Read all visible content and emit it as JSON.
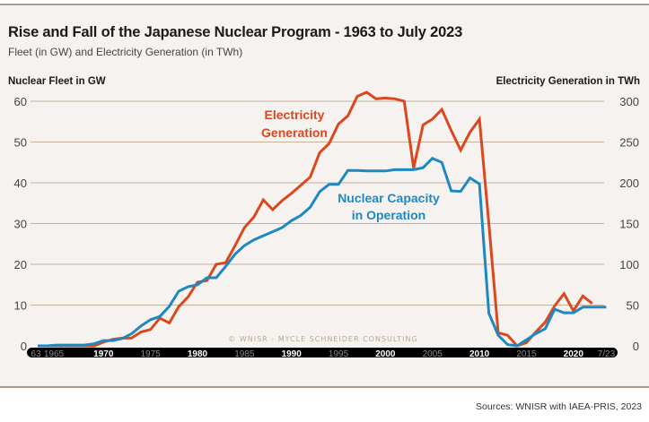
{
  "header": {
    "title": "Rise and Fall of the Japanese Nuclear Program - 1963 to July 2023",
    "subtitle": "Fleet (in GW) and Electricity Generation (in TWh)"
  },
  "footer": {
    "sources": "Sources: WNISR with IAEA-PRIS, 2023"
  },
  "colors": {
    "generation": "#d9481f",
    "capacity": "#1e88c0",
    "grid": "#c4b29a",
    "axis_band": "#000000"
  },
  "chart_data": {
    "type": "line",
    "title": "Rise and Fall of the Japanese Nuclear Program - 1963 to July 2023",
    "subtitle": "Fleet (in GW) and Electricity Generation (in TWh)",
    "ylabel_left": "Nuclear Fleet in GW",
    "ylabel_right": "Electricity Generation in TWh",
    "ylim_left": [
      0,
      60
    ],
    "ylim_right": [
      0,
      300
    ],
    "yticks_left": [
      "0",
      "10",
      "20",
      "30",
      "40",
      "50",
      "60"
    ],
    "yticks_right": [
      "0",
      "50",
      "100",
      "150",
      "200",
      "250",
      "300"
    ],
    "xlim": [
      1963,
      2023.5
    ],
    "xticks": [
      {
        "label": "63",
        "year": 1963,
        "bold": false
      },
      {
        "label": "1965",
        "year": 1965,
        "bold": false
      },
      {
        "label": "1970",
        "year": 1970,
        "bold": true
      },
      {
        "label": "1975",
        "year": 1975,
        "bold": false
      },
      {
        "label": "1980",
        "year": 1980,
        "bold": true
      },
      {
        "label": "1985",
        "year": 1985,
        "bold": false
      },
      {
        "label": "1990",
        "year": 1990,
        "bold": true
      },
      {
        "label": "1995",
        "year": 1995,
        "bold": false
      },
      {
        "label": "2000",
        "year": 2000,
        "bold": true
      },
      {
        "label": "2005",
        "year": 2005,
        "bold": false
      },
      {
        "label": "2010",
        "year": 2010,
        "bold": true
      },
      {
        "label": "2015",
        "year": 2015,
        "bold": false
      },
      {
        "label": "2020",
        "year": 2020,
        "bold": true
      },
      {
        "label": "7/23",
        "year": 2023.5,
        "bold": false
      }
    ],
    "grid": true,
    "watermark": "© WNISR - Mycle Schneider Consulting",
    "series": [
      {
        "name": "Nuclear Capacity in Operation",
        "label_lines": [
          "Nuclear Capacity",
          "in Operation"
        ],
        "axis": "left",
        "unit": "GW",
        "points": [
          [
            1963,
            0.0
          ],
          [
            1964,
            0.0
          ],
          [
            1965,
            0.2
          ],
          [
            1966,
            0.2
          ],
          [
            1967,
            0.2
          ],
          [
            1968,
            0.2
          ],
          [
            1969,
            0.5
          ],
          [
            1970,
            1.3
          ],
          [
            1971,
            1.3
          ],
          [
            1972,
            1.8
          ],
          [
            1973,
            3.0
          ],
          [
            1974,
            4.9
          ],
          [
            1975,
            6.4
          ],
          [
            1976,
            7.2
          ],
          [
            1977,
            9.7
          ],
          [
            1978,
            13.4
          ],
          [
            1979,
            14.5
          ],
          [
            1980,
            15.0
          ],
          [
            1981,
            16.7
          ],
          [
            1982,
            16.7
          ],
          [
            1983,
            19.5
          ],
          [
            1984,
            22.5
          ],
          [
            1985,
            24.6
          ],
          [
            1986,
            26.0
          ],
          [
            1987,
            27.0
          ],
          [
            1988,
            28.0
          ],
          [
            1989,
            29.0
          ],
          [
            1990,
            30.7
          ],
          [
            1991,
            32.0
          ],
          [
            1992,
            34.0
          ],
          [
            1993,
            37.8
          ],
          [
            1994,
            39.6
          ],
          [
            1995,
            39.6
          ],
          [
            1996,
            43.0
          ],
          [
            1997,
            43.0
          ],
          [
            1998,
            42.9
          ],
          [
            1999,
            42.9
          ],
          [
            2000,
            42.9
          ],
          [
            2001,
            43.2
          ],
          [
            2002,
            43.2
          ],
          [
            2003,
            43.2
          ],
          [
            2004,
            43.7
          ],
          [
            2005,
            46.0
          ],
          [
            2006,
            45.0
          ],
          [
            2007,
            38.0
          ],
          [
            2008,
            37.9
          ],
          [
            2009,
            41.2
          ],
          [
            2010,
            39.7
          ],
          [
            2011,
            8.0
          ],
          [
            2012,
            2.6
          ],
          [
            2013,
            0.3
          ],
          [
            2014,
            0.0
          ],
          [
            2015,
            1.5
          ],
          [
            2016,
            3.0
          ],
          [
            2017,
            4.2
          ],
          [
            2018,
            9.0
          ],
          [
            2019,
            8.1
          ],
          [
            2020,
            8.1
          ],
          [
            2021,
            9.5
          ],
          [
            2022,
            9.5
          ],
          [
            2023.5,
            9.5
          ]
        ]
      },
      {
        "name": "Electricity Generation",
        "label_lines": [
          "Electricity",
          "Generation"
        ],
        "axis": "right",
        "unit": "TWh",
        "points": [
          [
            1963,
            0
          ],
          [
            1964,
            0
          ],
          [
            1965,
            0
          ],
          [
            1966,
            0
          ],
          [
            1967,
            0
          ],
          [
            1968,
            0
          ],
          [
            1969,
            0
          ],
          [
            1970,
            4.6
          ],
          [
            1971,
            8
          ],
          [
            1972,
            9.5
          ],
          [
            1973,
            9.7
          ],
          [
            1974,
            17
          ],
          [
            1975,
            20
          ],
          [
            1976,
            34
          ],
          [
            1977,
            28
          ],
          [
            1978,
            48
          ],
          [
            1979,
            60
          ],
          [
            1980,
            78
          ],
          [
            1981,
            80
          ],
          [
            1982,
            100
          ],
          [
            1983,
            102
          ],
          [
            1984,
            123
          ],
          [
            1985,
            145
          ],
          [
            1986,
            158
          ],
          [
            1987,
            179
          ],
          [
            1988,
            167
          ],
          [
            1989,
            178
          ],
          [
            1990,
            187
          ],
          [
            1991,
            197
          ],
          [
            1992,
            207
          ],
          [
            1993,
            237
          ],
          [
            1994,
            248
          ],
          [
            1995,
            272
          ],
          [
            1996,
            282
          ],
          [
            1997,
            306
          ],
          [
            1998,
            311
          ],
          [
            1999,
            303
          ],
          [
            2000,
            304
          ],
          [
            2001,
            303
          ],
          [
            2002,
            300
          ],
          [
            2003,
            218
          ],
          [
            2004,
            271
          ],
          [
            2005,
            278
          ],
          [
            2006,
            290
          ],
          [
            2007,
            264
          ],
          [
            2008,
            240
          ],
          [
            2009,
            262
          ],
          [
            2010,
            278
          ],
          [
            2011,
            150
          ],
          [
            2012,
            16
          ],
          [
            2013,
            13
          ],
          [
            2014,
            0
          ],
          [
            2015,
            4
          ],
          [
            2016,
            17
          ],
          [
            2017,
            29
          ],
          [
            2018,
            49
          ],
          [
            2019,
            64
          ],
          [
            2020,
            43
          ],
          [
            2021,
            61
          ],
          [
            2022,
            52
          ]
        ]
      }
    ]
  }
}
